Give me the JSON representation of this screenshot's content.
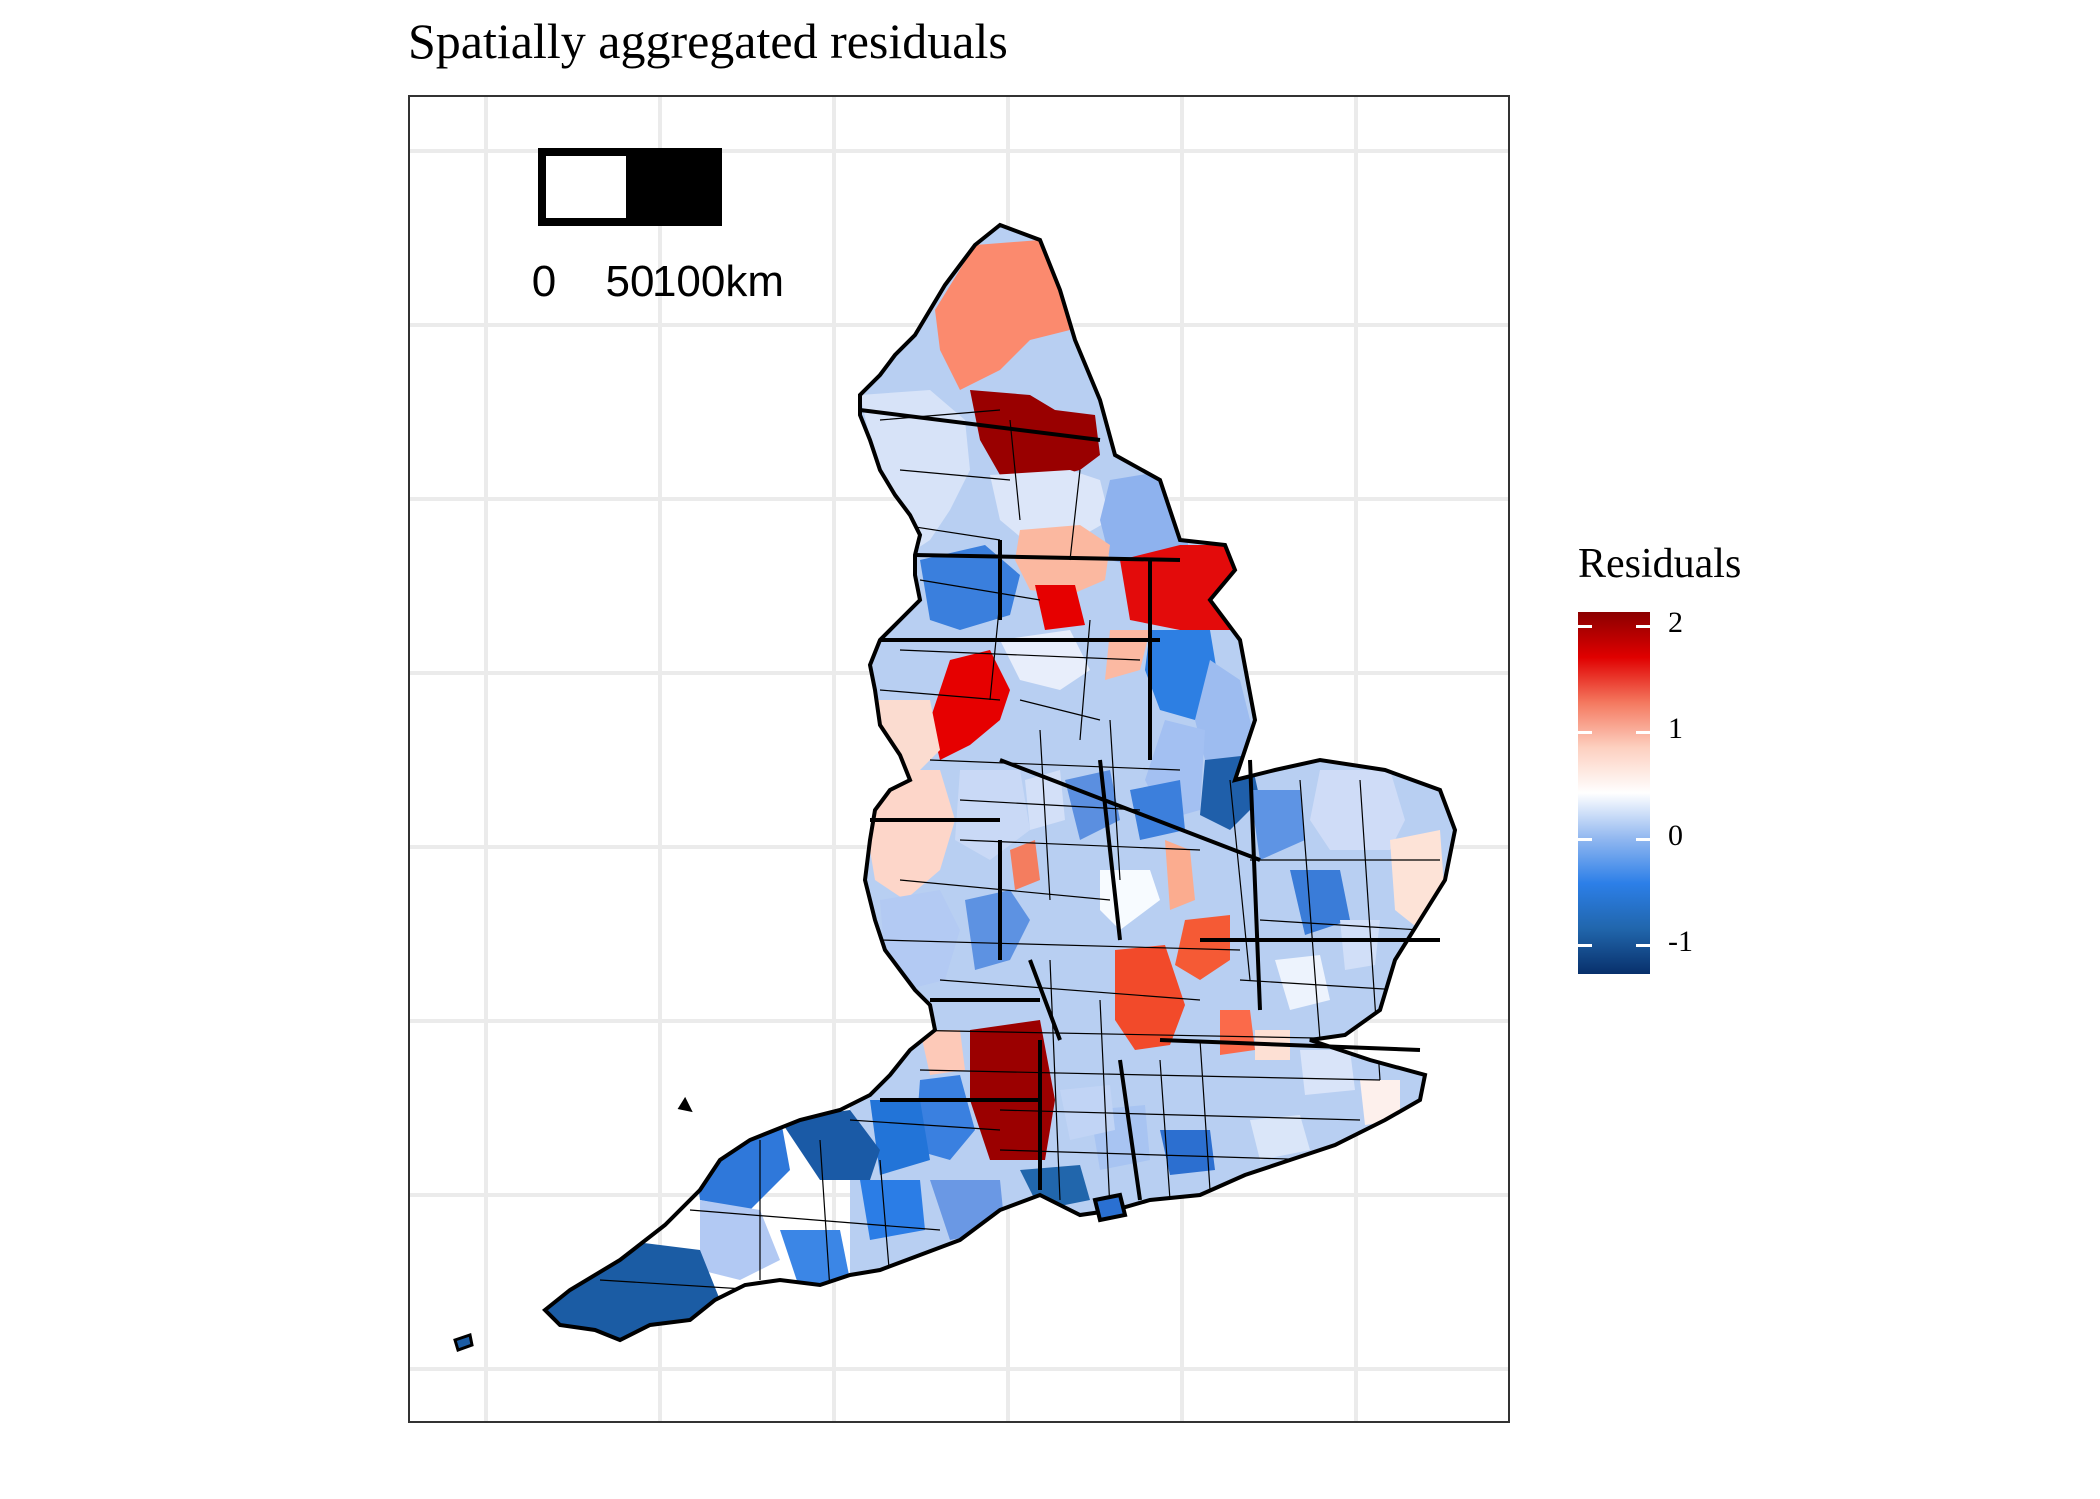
{
  "title": "Spatially aggregated residuals",
  "scale_bar": {
    "labels": [
      "0",
      "50",
      "100km"
    ],
    "segments": [
      0,
      50,
      100
    ]
  },
  "legend": {
    "title": "Residuals",
    "ticks": [
      "2",
      "1",
      "0",
      "-1"
    ],
    "tick_values": [
      2,
      1,
      0,
      -1
    ],
    "range": [
      -1.35,
      2.05
    ],
    "colors": [
      "#08306b",
      "#2166ac",
      "#2c7fe8",
      "#92b8f0",
      "#ffffff",
      "#fdd0c0",
      "#f4785f",
      "#e00000",
      "#8b0000"
    ]
  },
  "colors": {
    "outline": "#000000",
    "grid": "#ebebeb",
    "panel_border": "#333333"
  }
}
